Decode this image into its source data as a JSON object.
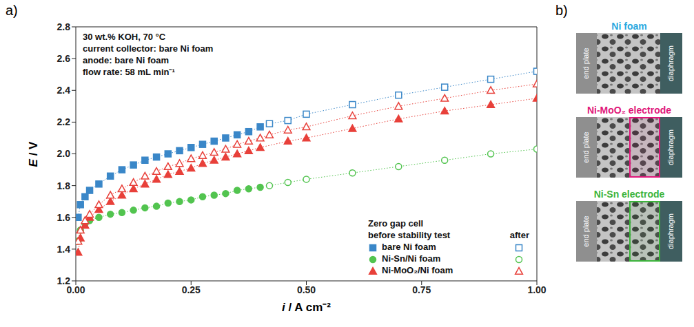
{
  "chart_data": {
    "type": "line",
    "panel": "a)",
    "xlabel": "i / A cm⁻²",
    "ylabel": "E / V",
    "xlim": [
      0,
      1
    ],
    "xticks": [
      {
        "value": 0,
        "label": "0.00"
      },
      {
        "value": 0.25,
        "label": "0.25"
      },
      {
        "value": 0.5,
        "label": "0.50"
      },
      {
        "value": 0.75,
        "label": "0.75"
      },
      {
        "value": 1,
        "label": "1.00"
      }
    ],
    "ylim": [
      1.2,
      2.8
    ],
    "yticks": [
      1.2,
      1.4,
      1.6,
      1.8,
      {
        "value": 2,
        "label": "2.0"
      },
      2.2,
      2.4,
      2.6,
      2.8
    ],
    "grid": false,
    "annotations": [
      "30 wt.% KOH, 70 °C",
      "current collector: bare Ni foam",
      "anode: bare Ni foam",
      "flow rate: 58 mL min⁻¹"
    ],
    "legend": "lower right",
    "legend_title": "Zero gap cell",
    "legend_columns": [
      "before stability test",
      "after"
    ],
    "line_style": "dotted",
    "series": [
      {
        "name": "bare Ni foam",
        "color": "#3a87c8",
        "marker": "square",
        "before": {
          "x": [
            0.005,
            0.01,
            0.02,
            0.03,
            0.05,
            0.075,
            0.1,
            0.125,
            0.15,
            0.175,
            0.2,
            0.225,
            0.25,
            0.275,
            0.3,
            0.325,
            0.35,
            0.375,
            0.4
          ],
          "values": [
            1.6,
            1.68,
            1.73,
            1.77,
            1.81,
            1.86,
            1.9,
            1.93,
            1.96,
            1.98,
            2.0,
            2.02,
            2.04,
            2.06,
            2.08,
            2.1,
            2.12,
            2.14,
            2.17
          ]
        },
        "after": {
          "x": [
            0.42,
            0.46,
            0.5,
            0.6,
            0.7,
            0.8,
            0.9,
            1.0
          ],
          "values": [
            2.19,
            2.21,
            2.25,
            2.31,
            2.37,
            2.42,
            2.47,
            2.52
          ]
        }
      },
      {
        "name": "Ni-Sn/Ni foam",
        "color": "#52c44f",
        "marker": "circle",
        "before": {
          "x": [
            0.005,
            0.01,
            0.02,
            0.03,
            0.05,
            0.075,
            0.1,
            0.125,
            0.15,
            0.175,
            0.2,
            0.225,
            0.25,
            0.275,
            0.3,
            0.325,
            0.35,
            0.375,
            0.4
          ],
          "values": [
            1.45,
            1.52,
            1.56,
            1.58,
            1.6,
            1.62,
            1.63,
            1.645,
            1.66,
            1.67,
            1.69,
            1.7,
            1.71,
            1.73,
            1.74,
            1.75,
            1.77,
            1.78,
            1.79
          ]
        },
        "after": {
          "x": [
            0.42,
            0.46,
            0.5,
            0.6,
            0.7,
            0.8,
            0.9,
            1.0
          ],
          "values": [
            1.8,
            1.82,
            1.84,
            1.88,
            1.92,
            1.96,
            2.0,
            2.03
          ]
        }
      },
      {
        "name": "Ni-MoO₂/Ni foam",
        "color": "#e8403a",
        "marker": "triangle",
        "before": {
          "x": [
            0.005,
            0.01,
            0.02,
            0.03,
            0.05,
            0.075,
            0.1,
            0.125,
            0.15,
            0.175,
            0.2,
            0.225,
            0.25,
            0.275,
            0.3,
            0.325,
            0.35,
            0.375,
            0.4,
            0.46,
            0.5,
            0.6,
            0.7,
            0.8,
            0.9,
            1.0
          ],
          "values": [
            1.38,
            1.47,
            1.55,
            1.6,
            1.65,
            1.7,
            1.74,
            1.78,
            1.81,
            1.84,
            1.87,
            1.89,
            1.91,
            1.94,
            1.96,
            1.98,
            2.0,
            2.02,
            2.04,
            2.08,
            2.1,
            2.16,
            2.22,
            2.27,
            2.31,
            2.35
          ]
        },
        "after": {
          "x": [
            0.005,
            0.01,
            0.02,
            0.03,
            0.05,
            0.075,
            0.1,
            0.125,
            0.15,
            0.175,
            0.2,
            0.225,
            0.25,
            0.275,
            0.3,
            0.325,
            0.35,
            0.375,
            0.4,
            0.42,
            0.46,
            0.5,
            0.6,
            0.7,
            0.8,
            0.9,
            1.0
          ],
          "values": [
            1.45,
            1.52,
            1.58,
            1.62,
            1.68,
            1.74,
            1.78,
            1.82,
            1.86,
            1.89,
            1.92,
            1.94,
            1.97,
            1.99,
            2.01,
            2.03,
            2.06,
            2.08,
            2.1,
            2.12,
            2.15,
            2.17,
            2.24,
            2.3,
            2.35,
            2.4,
            2.44
          ]
        }
      }
    ]
  },
  "diagram": {
    "panel": "b)",
    "items": [
      {
        "title": "Ni foam",
        "color": "#29a8e0",
        "parts": [
          "end plate",
          "diaphragm"
        ]
      },
      {
        "title": "Ni-MoO₂ electrode",
        "color": "#e0177a",
        "parts": [
          "end plate",
          "diaphragm"
        ]
      },
      {
        "title": "Ni-Sn electrode",
        "color": "#3cb43c",
        "parts": [
          "end plate",
          "diaphragm"
        ]
      }
    ]
  }
}
